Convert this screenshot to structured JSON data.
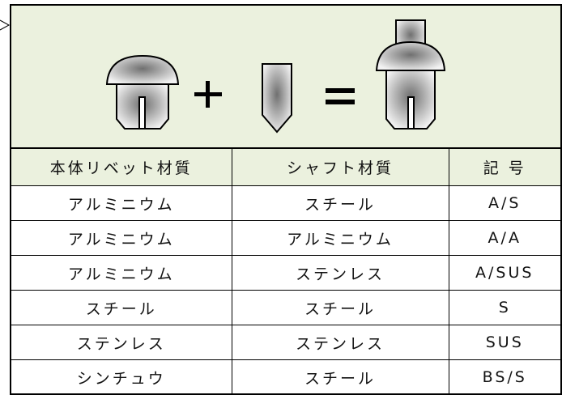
{
  "table": {
    "header": [
      "本体リベット材質",
      "シャフト材質",
      "記 号"
    ],
    "rows": [
      [
        "アルミニウム",
        "スチール",
        "A/S"
      ],
      [
        "アルミニウム",
        "アルミニウム",
        "A/A"
      ],
      [
        "アルミニウム",
        "ステンレス",
        "A/SUS"
      ],
      [
        "スチール",
        "スチール",
        "S"
      ],
      [
        "ステンレス",
        "ステンレス",
        "SUS"
      ],
      [
        "シンチュウ",
        "スチール",
        "BS/S"
      ]
    ]
  }
}
